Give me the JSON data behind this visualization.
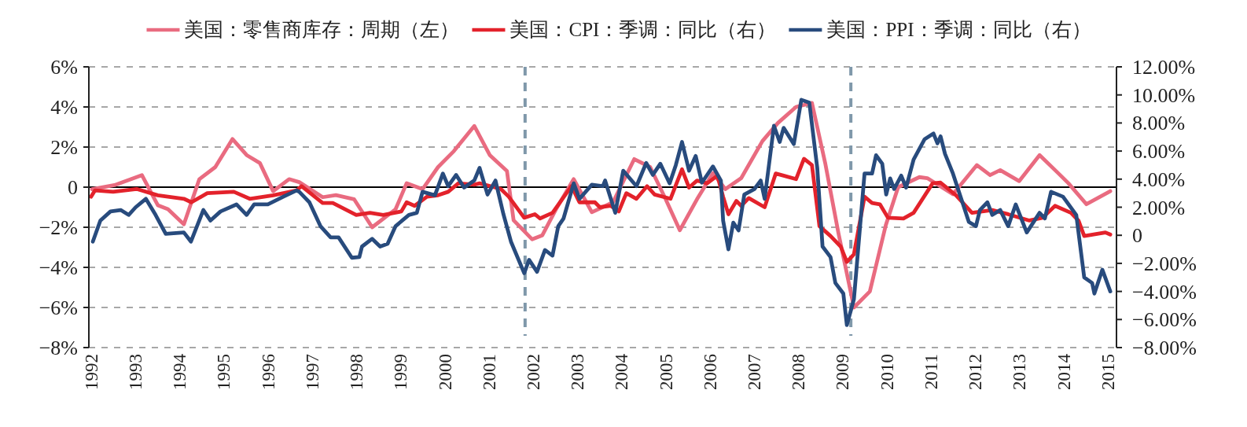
{
  "chart_data": {
    "type": "line",
    "xlim": [
      1991.95,
      2015.2
    ],
    "xticks": [
      1992,
      1993,
      1994,
      1995,
      1996,
      1997,
      1998,
      1999,
      2000,
      2001,
      2002,
      2003,
      2004,
      2005,
      2006,
      2007,
      2008,
      2009,
      2010,
      2011,
      2012,
      2013,
      2014,
      2015
    ],
    "ylim": [
      -8,
      6
    ],
    "yticks": [
      {
        "value": 6,
        "label": "6%"
      },
      {
        "value": 4,
        "label": "4%"
      },
      {
        "value": 2,
        "label": "2%"
      },
      0,
      {
        "value": -2,
        "label": "−2%"
      },
      {
        "value": -4,
        "label": "−4%"
      },
      {
        "value": -6,
        "label": "−6%"
      },
      {
        "value": -8,
        "label": "−8%"
      }
    ],
    "y2lim": [
      -8,
      12
    ],
    "y2ticks": [
      {
        "value": 12,
        "label": "12.00%"
      },
      {
        "value": 10,
        "label": "10.00%"
      },
      {
        "value": 8,
        "label": "8.00%"
      },
      {
        "value": 6,
        "label": "6.00%"
      },
      {
        "value": 4,
        "label": "4.00%"
      },
      {
        "value": 2,
        "label": "2.00%"
      },
      0,
      {
        "value": -2,
        "label": "−2.00%"
      },
      {
        "value": -4,
        "label": "−4.00%"
      },
      {
        "value": -6,
        "label": "−6.00%"
      },
      {
        "value": -8,
        "label": "−8.00%"
      }
    ],
    "grid": "y",
    "legend": "top",
    "ref_lines": [
      {
        "axis": "y",
        "value": 0,
        "color": "#000000",
        "line_style": "solid"
      },
      {
        "axis": "x",
        "value": 2001.82,
        "color": "#7f98aa",
        "line_style": "dashed"
      },
      {
        "axis": "x",
        "value": 2009.19,
        "color": "#7f98aa",
        "line_style": "dashed"
      }
    ],
    "series": [
      {
        "name": "美国：零售商库存：周期（左）",
        "color": "#e96b80",
        "x": [
          1992.02,
          1992.53,
          1993.15,
          1993.51,
          1993.74,
          1994.1,
          1994.45,
          1994.81,
          1995.2,
          1995.52,
          1995.82,
          1996.12,
          1996.48,
          1996.71,
          1997.24,
          1997.54,
          1997.95,
          1998.36,
          1998.89,
          1999.14,
          1999.5,
          1999.85,
          2000.21,
          2000.67,
          2001.02,
          2001.41,
          2001.56,
          2001.98,
          2002.21,
          2002.52,
          2002.92,
          2003.33,
          2003.81,
          2004.29,
          2004.65,
          2005.0,
          2005.32,
          2005.71,
          2006.07,
          2006.35,
          2006.71,
          2007.19,
          2007.54,
          2007.95,
          2008.31,
          2008.61,
          2008.91,
          2009.26,
          2009.62,
          2009.98,
          2010.26,
          2010.74,
          2010.92,
          2011.5,
          2012.04,
          2012.34,
          2012.57,
          2013.0,
          2013.46,
          2013.88,
          2014.11,
          2014.52,
          2015.06
        ],
        "values": [
          -0.1,
          0.1,
          0.6,
          -0.9,
          -1.1,
          -1.85,
          0.4,
          1.0,
          2.4,
          1.6,
          1.2,
          -0.2,
          0.4,
          0.25,
          -0.5,
          -0.4,
          -0.6,
          -2.0,
          -1.1,
          0.2,
          -0.1,
          1.0,
          1.8,
          3.05,
          1.6,
          0.8,
          -1.65,
          -2.6,
          -2.4,
          -1.1,
          0.4,
          -1.25,
          -0.75,
          1.4,
          1.0,
          -0.6,
          -2.15,
          -0.6,
          0.7,
          -0.1,
          0.45,
          2.3,
          3.2,
          4.0,
          4.2,
          1.2,
          -2.3,
          -6.0,
          -5.2,
          -1.9,
          0.0,
          0.5,
          0.45,
          -0.35,
          1.1,
          0.6,
          0.85,
          0.3,
          1.6,
          0.7,
          0.2,
          -0.85,
          -0.2
        ]
      },
      {
        "name": "美国：CPI：季调：同比（右）",
        "color": "#e3222b",
        "axis": "y2",
        "x": [
          1992.0,
          1992.09,
          1992.5,
          1993.03,
          1993.51,
          1994.1,
          1994.27,
          1994.63,
          1995.23,
          1995.59,
          1996.12,
          1996.65,
          1996.76,
          1997.24,
          1997.47,
          1998.0,
          1998.31,
          1998.61,
          1999.02,
          1999.14,
          1999.32,
          1999.6,
          1999.85,
          2000.08,
          2000.31,
          2000.67,
          2000.79,
          2001.27,
          2001.45,
          2001.8,
          2002.04,
          2002.16,
          2002.44,
          2002.87,
          2003.05,
          2003.4,
          2003.51,
          2003.76,
          2003.94,
          2004.11,
          2004.34,
          2004.58,
          2004.75,
          2005.11,
          2005.37,
          2005.53,
          2005.71,
          2005.94,
          2006.17,
          2006.3,
          2006.42,
          2006.6,
          2006.71,
          2006.88,
          2007.24,
          2007.49,
          2007.67,
          2007.95,
          2008.13,
          2008.31,
          2008.48,
          2008.73,
          2008.96,
          2009.1,
          2009.26,
          2009.5,
          2009.67,
          2009.85,
          2010.03,
          2010.38,
          2010.61,
          2011.04,
          2011.22,
          2011.57,
          2011.93,
          2012.39,
          2012.75,
          2013.23,
          2013.53,
          2013.81,
          2014.17,
          2014.34,
          2014.47,
          2014.95,
          2015.06
        ],
        "values": [
          2.75,
          3.2,
          3.1,
          3.3,
          2.85,
          2.6,
          2.35,
          3.0,
          3.1,
          2.6,
          2.85,
          3.2,
          3.5,
          2.3,
          2.3,
          1.45,
          1.6,
          1.45,
          1.7,
          2.35,
          2.1,
          2.75,
          2.85,
          3.1,
          3.7,
          3.6,
          3.7,
          3.3,
          2.75,
          1.25,
          1.5,
          1.2,
          1.6,
          3.5,
          2.35,
          2.35,
          2.0,
          2.1,
          1.7,
          3.0,
          2.6,
          3.5,
          2.9,
          2.6,
          4.7,
          3.4,
          3.9,
          3.7,
          4.25,
          2.75,
          1.5,
          2.45,
          2.1,
          2.65,
          2.0,
          4.4,
          4.25,
          4.0,
          5.45,
          5.0,
          0.65,
          -0.05,
          -0.8,
          -1.9,
          -1.35,
          2.75,
          2.3,
          2.2,
          1.25,
          1.2,
          1.6,
          3.7,
          3.75,
          2.85,
          1.6,
          1.8,
          1.5,
          1.05,
          1.25,
          2.1,
          1.6,
          1.05,
          -0.05,
          0.2,
          0.05
        ]
      },
      {
        "name": "美国：PPI：季调：同比（右）",
        "color": "#284b7d",
        "axis": "y2",
        "x": [
          1992.04,
          1992.21,
          1992.44,
          1992.67,
          1992.85,
          1993.01,
          1993.24,
          1993.46,
          1993.69,
          1994.1,
          1994.26,
          1994.54,
          1994.7,
          1994.93,
          1995.29,
          1995.52,
          1995.69,
          1996.0,
          1996.35,
          1996.65,
          1996.71,
          1996.94,
          1997.19,
          1997.42,
          1997.6,
          1997.9,
          1998.07,
          1998.13,
          1998.36,
          1998.54,
          1998.71,
          1998.89,
          1999.19,
          1999.37,
          1999.5,
          1999.78,
          1999.96,
          2000.08,
          2000.26,
          2000.44,
          2000.67,
          2000.79,
          2000.97,
          2001.15,
          2001.33,
          2001.5,
          2001.8,
          2001.91,
          2002.09,
          2002.27,
          2002.44,
          2002.57,
          2002.69,
          2002.92,
          2003.05,
          2003.33,
          2003.58,
          2003.63,
          2003.86,
          2004.04,
          2004.34,
          2004.56,
          2004.71,
          2004.88,
          2005.09,
          2005.23,
          2005.37,
          2005.53,
          2005.68,
          2005.82,
          2006.07,
          2006.25,
          2006.3,
          2006.42,
          2006.53,
          2006.65,
          2006.78,
          2007.01,
          2007.15,
          2007.24,
          2007.45,
          2007.58,
          2007.67,
          2007.9,
          2008.07,
          2008.25,
          2008.43,
          2008.55,
          2008.73,
          2008.84,
          2009.02,
          2009.1,
          2009.26,
          2009.5,
          2009.67,
          2009.76,
          2009.9,
          2009.99,
          2010.08,
          2010.17,
          2010.33,
          2010.44,
          2010.61,
          2010.86,
          2011.06,
          2011.15,
          2011.22,
          2011.32,
          2011.5,
          2011.86,
          2012.02,
          2012.11,
          2012.28,
          2012.39,
          2012.57,
          2012.75,
          2012.92,
          2013.17,
          2013.46,
          2013.58,
          2013.72,
          2013.99,
          2014.29,
          2014.47,
          2014.65,
          2014.7,
          2014.88,
          2015.06
        ],
        "values": [
          -0.45,
          1.05,
          1.7,
          1.8,
          1.45,
          2.0,
          2.6,
          1.45,
          0.1,
          0.2,
          -0.45,
          1.8,
          1.05,
          1.7,
          2.2,
          1.45,
          2.2,
          2.2,
          2.75,
          3.2,
          3.1,
          2.35,
          0.65,
          -0.15,
          -0.15,
          -1.6,
          -1.55,
          -0.8,
          -0.25,
          -0.8,
          -0.6,
          0.65,
          1.45,
          1.6,
          3.1,
          2.85,
          4.4,
          3.5,
          4.3,
          3.4,
          3.9,
          4.8,
          2.9,
          3.9,
          1.5,
          -0.45,
          -2.7,
          -1.75,
          -2.6,
          -1.05,
          -1.45,
          0.65,
          1.2,
          3.7,
          2.6,
          3.6,
          3.5,
          3.9,
          1.6,
          4.6,
          3.5,
          5.15,
          4.3,
          5.1,
          3.7,
          5.0,
          6.65,
          4.6,
          5.65,
          3.75,
          4.9,
          3.9,
          1.05,
          -1.0,
          0.9,
          0.35,
          2.9,
          3.3,
          3.9,
          2.6,
          7.8,
          6.65,
          7.65,
          6.5,
          9.65,
          9.45,
          4.8,
          -0.8,
          -1.55,
          -3.4,
          -4.15,
          -6.4,
          -4.55,
          4.4,
          4.4,
          5.7,
          5.1,
          2.9,
          4.05,
          3.3,
          4.25,
          3.4,
          5.4,
          6.85,
          7.25,
          6.55,
          7.05,
          5.8,
          4.4,
          0.95,
          0.65,
          1.8,
          2.35,
          1.45,
          1.8,
          0.65,
          2.2,
          0.2,
          1.6,
          1.2,
          3.1,
          2.75,
          1.45,
          -3.0,
          -3.4,
          -4.15,
          -2.45,
          -4.0
        ]
      }
    ]
  }
}
